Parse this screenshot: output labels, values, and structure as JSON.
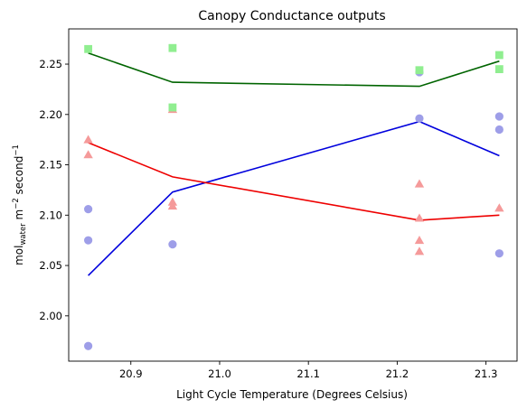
{
  "chart_data": {
    "type": "scatter",
    "title": "Canopy Conductance outputs",
    "xlabel": "Light Cycle Temperature (Degrees Celsius)",
    "ylabel": {
      "prefix": "mol",
      "subscript": "water",
      "suffix": " m",
      "exp1": "−2",
      "middle": " second",
      "exp2": "−1"
    },
    "xlim": [
      20.83,
      21.335
    ],
    "ylim": [
      1.955,
      2.285
    ],
    "xticks": [
      20.9,
      21.0,
      21.1,
      21.2,
      21.3
    ],
    "xtick_labels": [
      "20.9",
      "21.0",
      "21.1",
      "21.2",
      "21.3"
    ],
    "yticks": [
      2.0,
      2.05,
      2.1,
      2.15,
      2.2,
      2.25
    ],
    "ytick_labels": [
      "2.00",
      "2.05",
      "2.10",
      "2.15",
      "2.20",
      "2.25"
    ],
    "grid": false,
    "series": [
      {
        "marker": "circle",
        "point_color": "#9e9ee8",
        "line_color": "#0000dd",
        "points": [
          {
            "x": 20.852,
            "y": 2.106
          },
          {
            "x": 20.852,
            "y": 2.075
          },
          {
            "x": 20.852,
            "y": 1.97
          },
          {
            "x": 20.947,
            "y": 2.071
          },
          {
            "x": 21.225,
            "y": 2.242
          },
          {
            "x": 21.225,
            "y": 2.196
          },
          {
            "x": 21.315,
            "y": 2.198
          },
          {
            "x": 21.315,
            "y": 2.185
          },
          {
            "x": 21.315,
            "y": 2.062
          }
        ],
        "line": [
          {
            "x": 20.852,
            "y": 2.04
          },
          {
            "x": 20.947,
            "y": 2.123
          },
          {
            "x": 21.225,
            "y": 2.193
          },
          {
            "x": 21.315,
            "y": 2.159
          }
        ]
      },
      {
        "marker": "triangle",
        "point_color": "#f59a9a",
        "line_color": "#ee0000",
        "points": [
          {
            "x": 20.852,
            "y": 2.175
          },
          {
            "x": 20.852,
            "y": 2.16
          },
          {
            "x": 20.947,
            "y": 2.205
          },
          {
            "x": 20.947,
            "y": 2.113
          },
          {
            "x": 20.947,
            "y": 2.109
          },
          {
            "x": 21.225,
            "y": 2.131
          },
          {
            "x": 21.225,
            "y": 2.097
          },
          {
            "x": 21.225,
            "y": 2.075
          },
          {
            "x": 21.225,
            "y": 2.064
          },
          {
            "x": 21.315,
            "y": 2.107
          }
        ],
        "line": [
          {
            "x": 20.852,
            "y": 2.172
          },
          {
            "x": 20.947,
            "y": 2.138
          },
          {
            "x": 21.225,
            "y": 2.095
          },
          {
            "x": 21.315,
            "y": 2.1
          }
        ]
      },
      {
        "marker": "square",
        "point_color": "#90ee90",
        "line_color": "#006400",
        "points": [
          {
            "x": 20.852,
            "y": 2.265
          },
          {
            "x": 20.947,
            "y": 2.266
          },
          {
            "x": 20.947,
            "y": 2.207
          },
          {
            "x": 21.225,
            "y": 2.244
          },
          {
            "x": 21.315,
            "y": 2.259
          },
          {
            "x": 21.315,
            "y": 2.245
          }
        ],
        "line": [
          {
            "x": 20.852,
            "y": 2.261
          },
          {
            "x": 20.947,
            "y": 2.232
          },
          {
            "x": 21.225,
            "y": 2.228
          },
          {
            "x": 21.315,
            "y": 2.253
          }
        ]
      }
    ]
  }
}
